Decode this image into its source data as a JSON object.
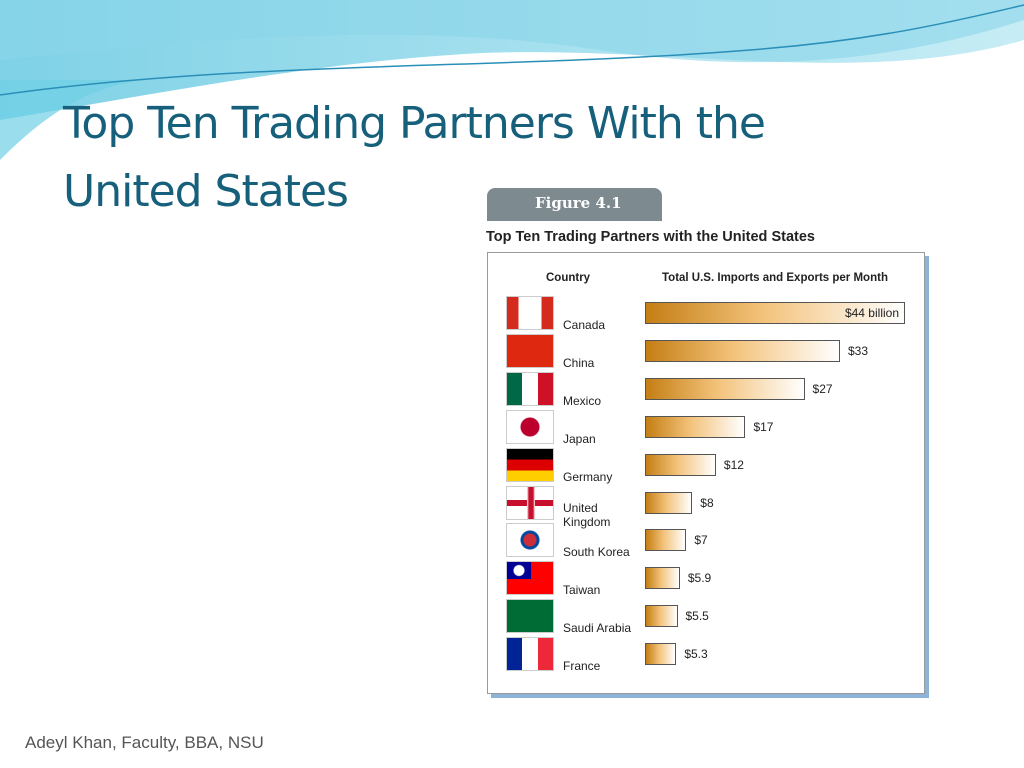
{
  "slide_title": "Top Ten Trading Partners With the United States",
  "footer": "Adeyl Khan, Faculty, BBA, NSU",
  "chart_data": {
    "type": "bar",
    "badge": "Figure 4.1",
    "title": "Top Ten Trading Partners with the United States",
    "category_header": "Country",
    "value_header": "Total U.S. Imports and Exports per Month",
    "categories": [
      "Canada",
      "China",
      "Mexico",
      "Japan",
      "Germany",
      "United Kingdom",
      "South Korea",
      "Taiwan",
      "Saudi Arabia",
      "France"
    ],
    "values": [
      44,
      33,
      27,
      17,
      12,
      8,
      7,
      5.9,
      5.5,
      5.3
    ],
    "value_labels": [
      "$44 billion",
      "$33",
      "$27",
      "$17",
      "$12",
      "$8",
      "$7",
      "$5.9",
      "$5.5",
      "$5.3"
    ],
    "color": "#c47e14"
  }
}
